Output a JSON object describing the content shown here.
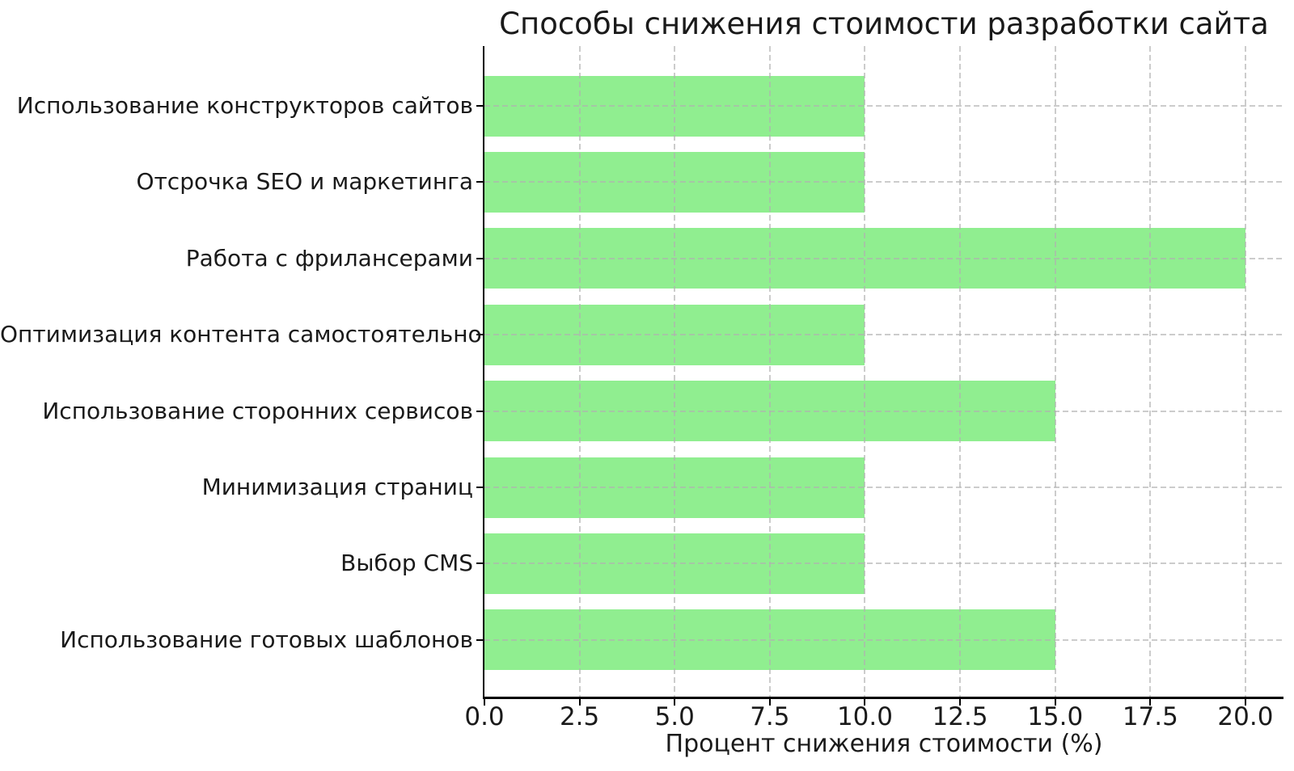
{
  "chart_data": {
    "type": "bar",
    "orientation": "horizontal",
    "title": "Способы снижения стоимости разработки сайта",
    "xlabel": "Процент снижения стоимости (%)",
    "ylabel": "",
    "categories": [
      "Использование конструкторов сайтов",
      "Отсрочка SEO и маркетинга",
      "Работа с фрилансерами",
      "Оптимизация контента самостоятельно",
      "Использование сторонних сервисов",
      "Минимизация страниц",
      "Выбор CMS",
      "Использование готовых шаблонов"
    ],
    "values": [
      10,
      10,
      20,
      10,
      15,
      10,
      10,
      15
    ],
    "xlim": [
      0,
      21
    ],
    "xticks": [
      0,
      2.5,
      5,
      7.5,
      10,
      12.5,
      15,
      17.5,
      20
    ],
    "xtick_labels": [
      "0.0",
      "2.5",
      "5.0",
      "7.5",
      "10.0",
      "12.5",
      "15.0",
      "17.5",
      "20.0"
    ],
    "grid": true,
    "grid_style": "dashed",
    "legend_position": "none",
    "colors": {
      "bar": "#90EE90",
      "grid": "#c9c9c9",
      "spine": "#000000",
      "text": "#1a1a1a",
      "background": "#ffffff"
    }
  }
}
